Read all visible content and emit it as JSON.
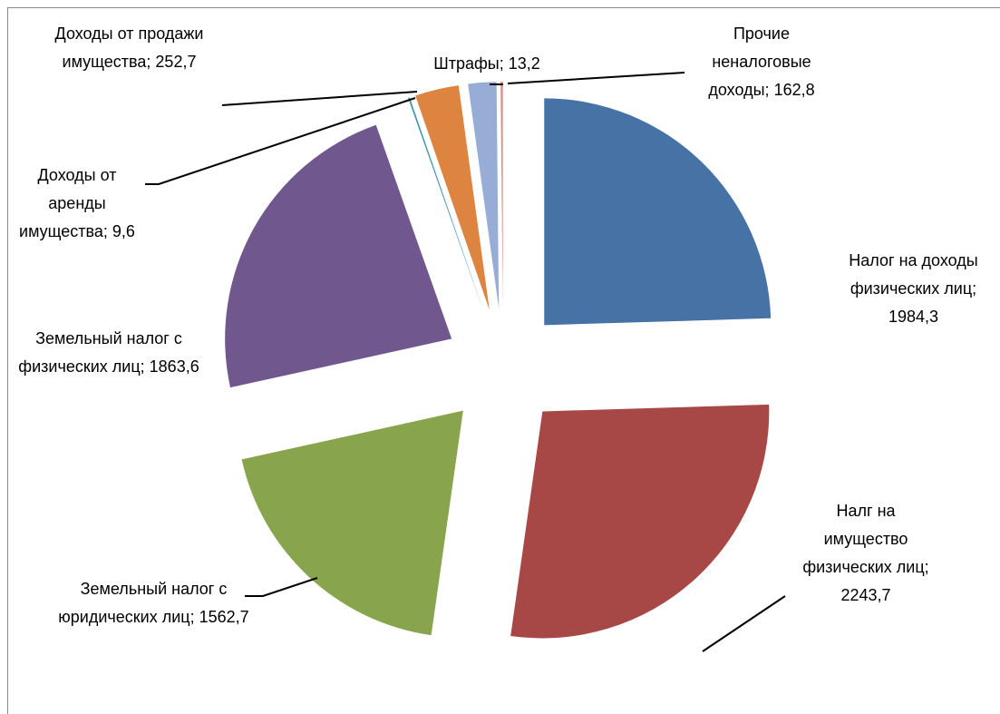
{
  "chart_data": {
    "type": "pie",
    "categories": [
      "Налог на доходы физических лиц",
      "Налг на имущество физических лиц",
      "Земельный налог с юридических лиц",
      "Земельный налог с физических лиц",
      "Доходы от аренды имущества",
      "Доходы от продажи имущества",
      "Прочие неналоговые доходы",
      "Штрафы"
    ],
    "values": [
      1984.3,
      2243.7,
      1562.7,
      1863.6,
      9.6,
      252.7,
      162.8,
      13.2
    ],
    "value_labels": [
      "1984,3",
      "2243,7",
      "1562,7",
      "1863,6",
      "9,6",
      "252,7",
      "162,8",
      "13,2"
    ],
    "label_separator": "; ",
    "colors": [
      "#4672a5",
      "#a84846",
      "#88a54e",
      "#70588f",
      "#3f96ad",
      "#dc8440",
      "#97add6",
      "#d8908f"
    ]
  }
}
